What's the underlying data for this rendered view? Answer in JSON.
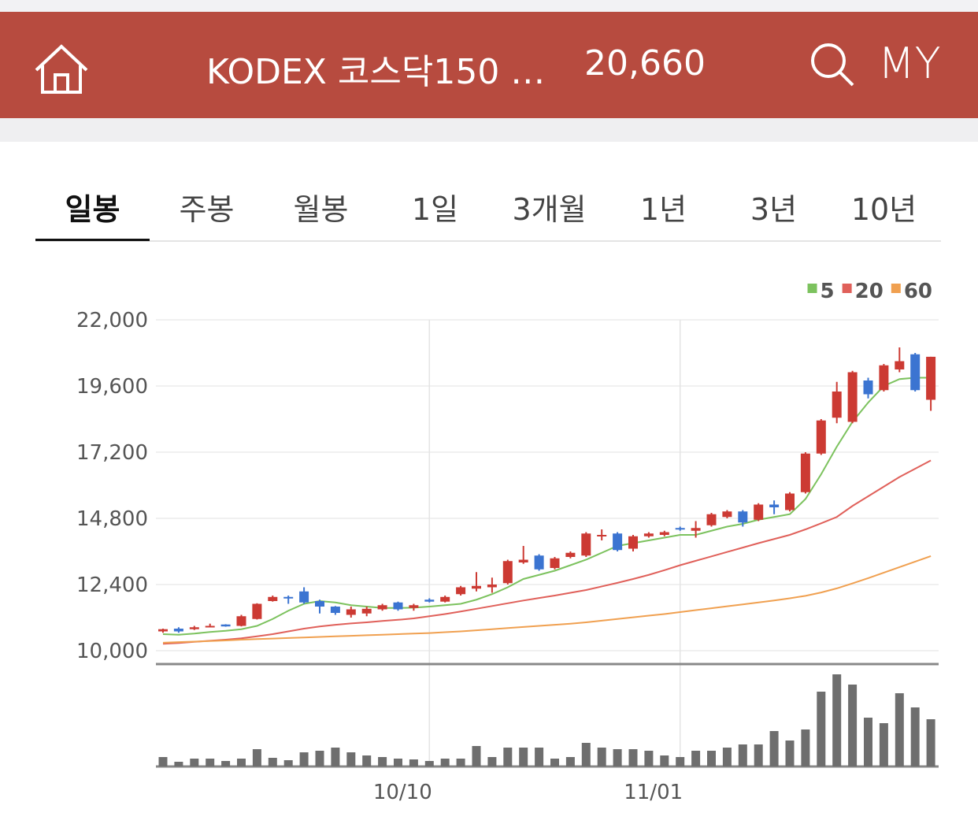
{
  "header": {
    "title": "KODEX 코스닥150 …",
    "price": "20,660",
    "my": "MY"
  },
  "tabs": [
    "일봉",
    "주봉",
    "월봉",
    "1일",
    "3개월",
    "1년",
    "3년",
    "10년"
  ],
  "chart_data": {
    "type": "candlestick",
    "categories": [
      null,
      null,
      null,
      null,
      null,
      null,
      null,
      null,
      null,
      null,
      null,
      null,
      null,
      null,
      null,
      null,
      null,
      "10/10",
      null,
      null,
      null,
      null,
      null,
      null,
      null,
      null,
      null,
      null,
      null,
      null,
      null,
      null,
      null,
      "11/01",
      null,
      null,
      null,
      null,
      null,
      null,
      null,
      null,
      null,
      null,
      null,
      null,
      null,
      null,
      null,
      null
    ],
    "open": [
      10700,
      10800,
      10780,
      10880,
      10950,
      10900,
      11150,
      11800,
      11950,
      12150,
      11800,
      11600,
      11300,
      11350,
      11500,
      11750,
      11550,
      11850,
      11780,
      12050,
      12250,
      12300,
      12450,
      13200,
      13450,
      13000,
      13400,
      13450,
      14150,
      14250,
      13700,
      14150,
      14200,
      14450,
      14350,
      14550,
      14850,
      15050,
      14750,
      15300,
      15100,
      15750,
      17150,
      18450,
      18300,
      19800,
      19450,
      20200,
      20750,
      19100
    ],
    "high": [
      10800,
      10850,
      10900,
      10980,
      10960,
      11300,
      11720,
      12000,
      12000,
      12300,
      11850,
      11620,
      11600,
      11600,
      11700,
      11780,
      11700,
      11900,
      12000,
      12350,
      12850,
      12650,
      13300,
      13800,
      13500,
      13400,
      13600,
      14300,
      14400,
      14300,
      14200,
      14300,
      14350,
      14500,
      14700,
      15000,
      15100,
      15100,
      15350,
      15450,
      15750,
      17200,
      18400,
      19750,
      20150,
      19900,
      20400,
      21000,
      20800,
      20660
    ],
    "low": [
      10650,
      10650,
      10750,
      10850,
      10870,
      10880,
      11130,
      11780,
      11700,
      11700,
      11350,
      11300,
      11200,
      11250,
      11450,
      11450,
      11450,
      11750,
      11750,
      12000,
      12150,
      12100,
      12400,
      13150,
      12900,
      12950,
      13350,
      13400,
      14000,
      13600,
      13600,
      14100,
      14150,
      14350,
      14100,
      14500,
      14800,
      14500,
      14700,
      14950,
      15050,
      15700,
      17100,
      18250,
      18250,
      19150,
      19400,
      20100,
      19400,
      18700
    ],
    "close": [
      10780,
      10700,
      10850,
      10900,
      10880,
      11250,
      11700,
      11950,
      11900,
      11750,
      11600,
      11370,
      11500,
      11520,
      11650,
      11500,
      11650,
      11780,
      11950,
      12300,
      12350,
      12400,
      13250,
      13300,
      12950,
      13350,
      13550,
      14250,
      14200,
      13650,
      14150,
      14250,
      14300,
      14400,
      14450,
      14950,
      15050,
      14650,
      15300,
      15200,
      15700,
      17150,
      18350,
      19400,
      20100,
      19300,
      20350,
      20500,
      19450,
      20660
    ],
    "up_color": "#cc3a33",
    "down_color": "#3b74d1",
    "series": [
      {
        "name": "5",
        "color": "#7cc25e",
        "values": [
          10600,
          10580,
          10620,
          10680,
          10720,
          10780,
          10900,
          11150,
          11450,
          11700,
          11800,
          11750,
          11650,
          11600,
          11550,
          11550,
          11560,
          11600,
          11650,
          11700,
          11850,
          12050,
          12300,
          12600,
          12750,
          12900,
          13100,
          13300,
          13550,
          13800,
          13900,
          14000,
          14100,
          14200,
          14200,
          14350,
          14500,
          14600,
          14750,
          14850,
          14950,
          15500,
          16400,
          17400,
          18300,
          19000,
          19600,
          19850,
          19900,
          19900
        ]
      },
      {
        "name": "20",
        "color": "#e0605a",
        "values": [
          10250,
          10280,
          10320,
          10360,
          10400,
          10450,
          10520,
          10600,
          10700,
          10800,
          10880,
          10940,
          10990,
          11030,
          11080,
          11120,
          11170,
          11250,
          11330,
          11420,
          11520,
          11620,
          11720,
          11820,
          11910,
          12000,
          12100,
          12200,
          12330,
          12460,
          12600,
          12750,
          12920,
          13100,
          13260,
          13420,
          13580,
          13740,
          13900,
          14050,
          14200,
          14400,
          14620,
          14850,
          15250,
          15600,
          15950,
          16300,
          16600,
          16900
        ]
      },
      {
        "name": "60",
        "color": "#f0a050",
        "values": [
          10290,
          10310,
          10330,
          10350,
          10370,
          10400,
          10420,
          10440,
          10460,
          10480,
          10500,
          10520,
          10540,
          10560,
          10580,
          10600,
          10620,
          10640,
          10670,
          10700,
          10740,
          10780,
          10820,
          10860,
          10900,
          10940,
          10980,
          11030,
          11090,
          11150,
          11210,
          11270,
          11330,
          11400,
          11470,
          11540,
          11610,
          11680,
          11750,
          11820,
          11900,
          11990,
          12110,
          12260,
          12440,
          12630,
          12830,
          13030,
          13230,
          13430
        ]
      }
    ],
    "volume": [
      12,
      6,
      10,
      10,
      7,
      10,
      22,
      11,
      8,
      18,
      20,
      24,
      18,
      14,
      12,
      10,
      9,
      7,
      10,
      10,
      26,
      12,
      24,
      24,
      24,
      10,
      12,
      30,
      24,
      22,
      22,
      20,
      14,
      12,
      20,
      20,
      24,
      28,
      28,
      45,
      33,
      47,
      95,
      117,
      104,
      62,
      55,
      93,
      75,
      60
    ],
    "volume_color": "#6e6e6e",
    "ylim": [
      10000,
      22000
    ],
    "yticks": [
      {
        "value": 10000,
        "label": "10,000"
      },
      {
        "value": 12400,
        "label": "12,400"
      },
      {
        "value": 14800,
        "label": "14,800"
      },
      {
        "value": 17200,
        "label": "17,200"
      },
      {
        "value": 19600,
        "label": "19,600"
      },
      {
        "value": 22000,
        "label": "22,000"
      }
    ],
    "grid": true,
    "legend": "top-right"
  }
}
